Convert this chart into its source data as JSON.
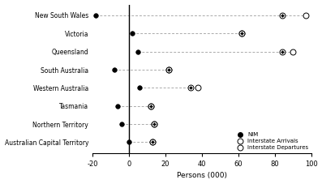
{
  "states": [
    "New South Wales",
    "Victoria",
    "Queensland",
    "South Australia",
    "Western Australia",
    "Tasmania",
    "Northern Territory",
    "Australian Capital Territory"
  ],
  "nim": [
    -18,
    2,
    5,
    -8,
    6,
    -6,
    -4,
    0
  ],
  "arrivals": [
    84,
    62,
    84,
    22,
    34,
    12,
    14,
    13
  ],
  "departures": [
    97,
    62,
    90,
    22,
    38,
    12,
    14,
    13
  ],
  "xlim": [
    -20,
    100
  ],
  "xticks": [
    -20,
    0,
    20,
    40,
    60,
    80,
    100
  ],
  "xlabel": "Persons (000)",
  "bg_color": "#ffffff",
  "dashed_color": "#aaaaaa",
  "line_color": "#000000"
}
